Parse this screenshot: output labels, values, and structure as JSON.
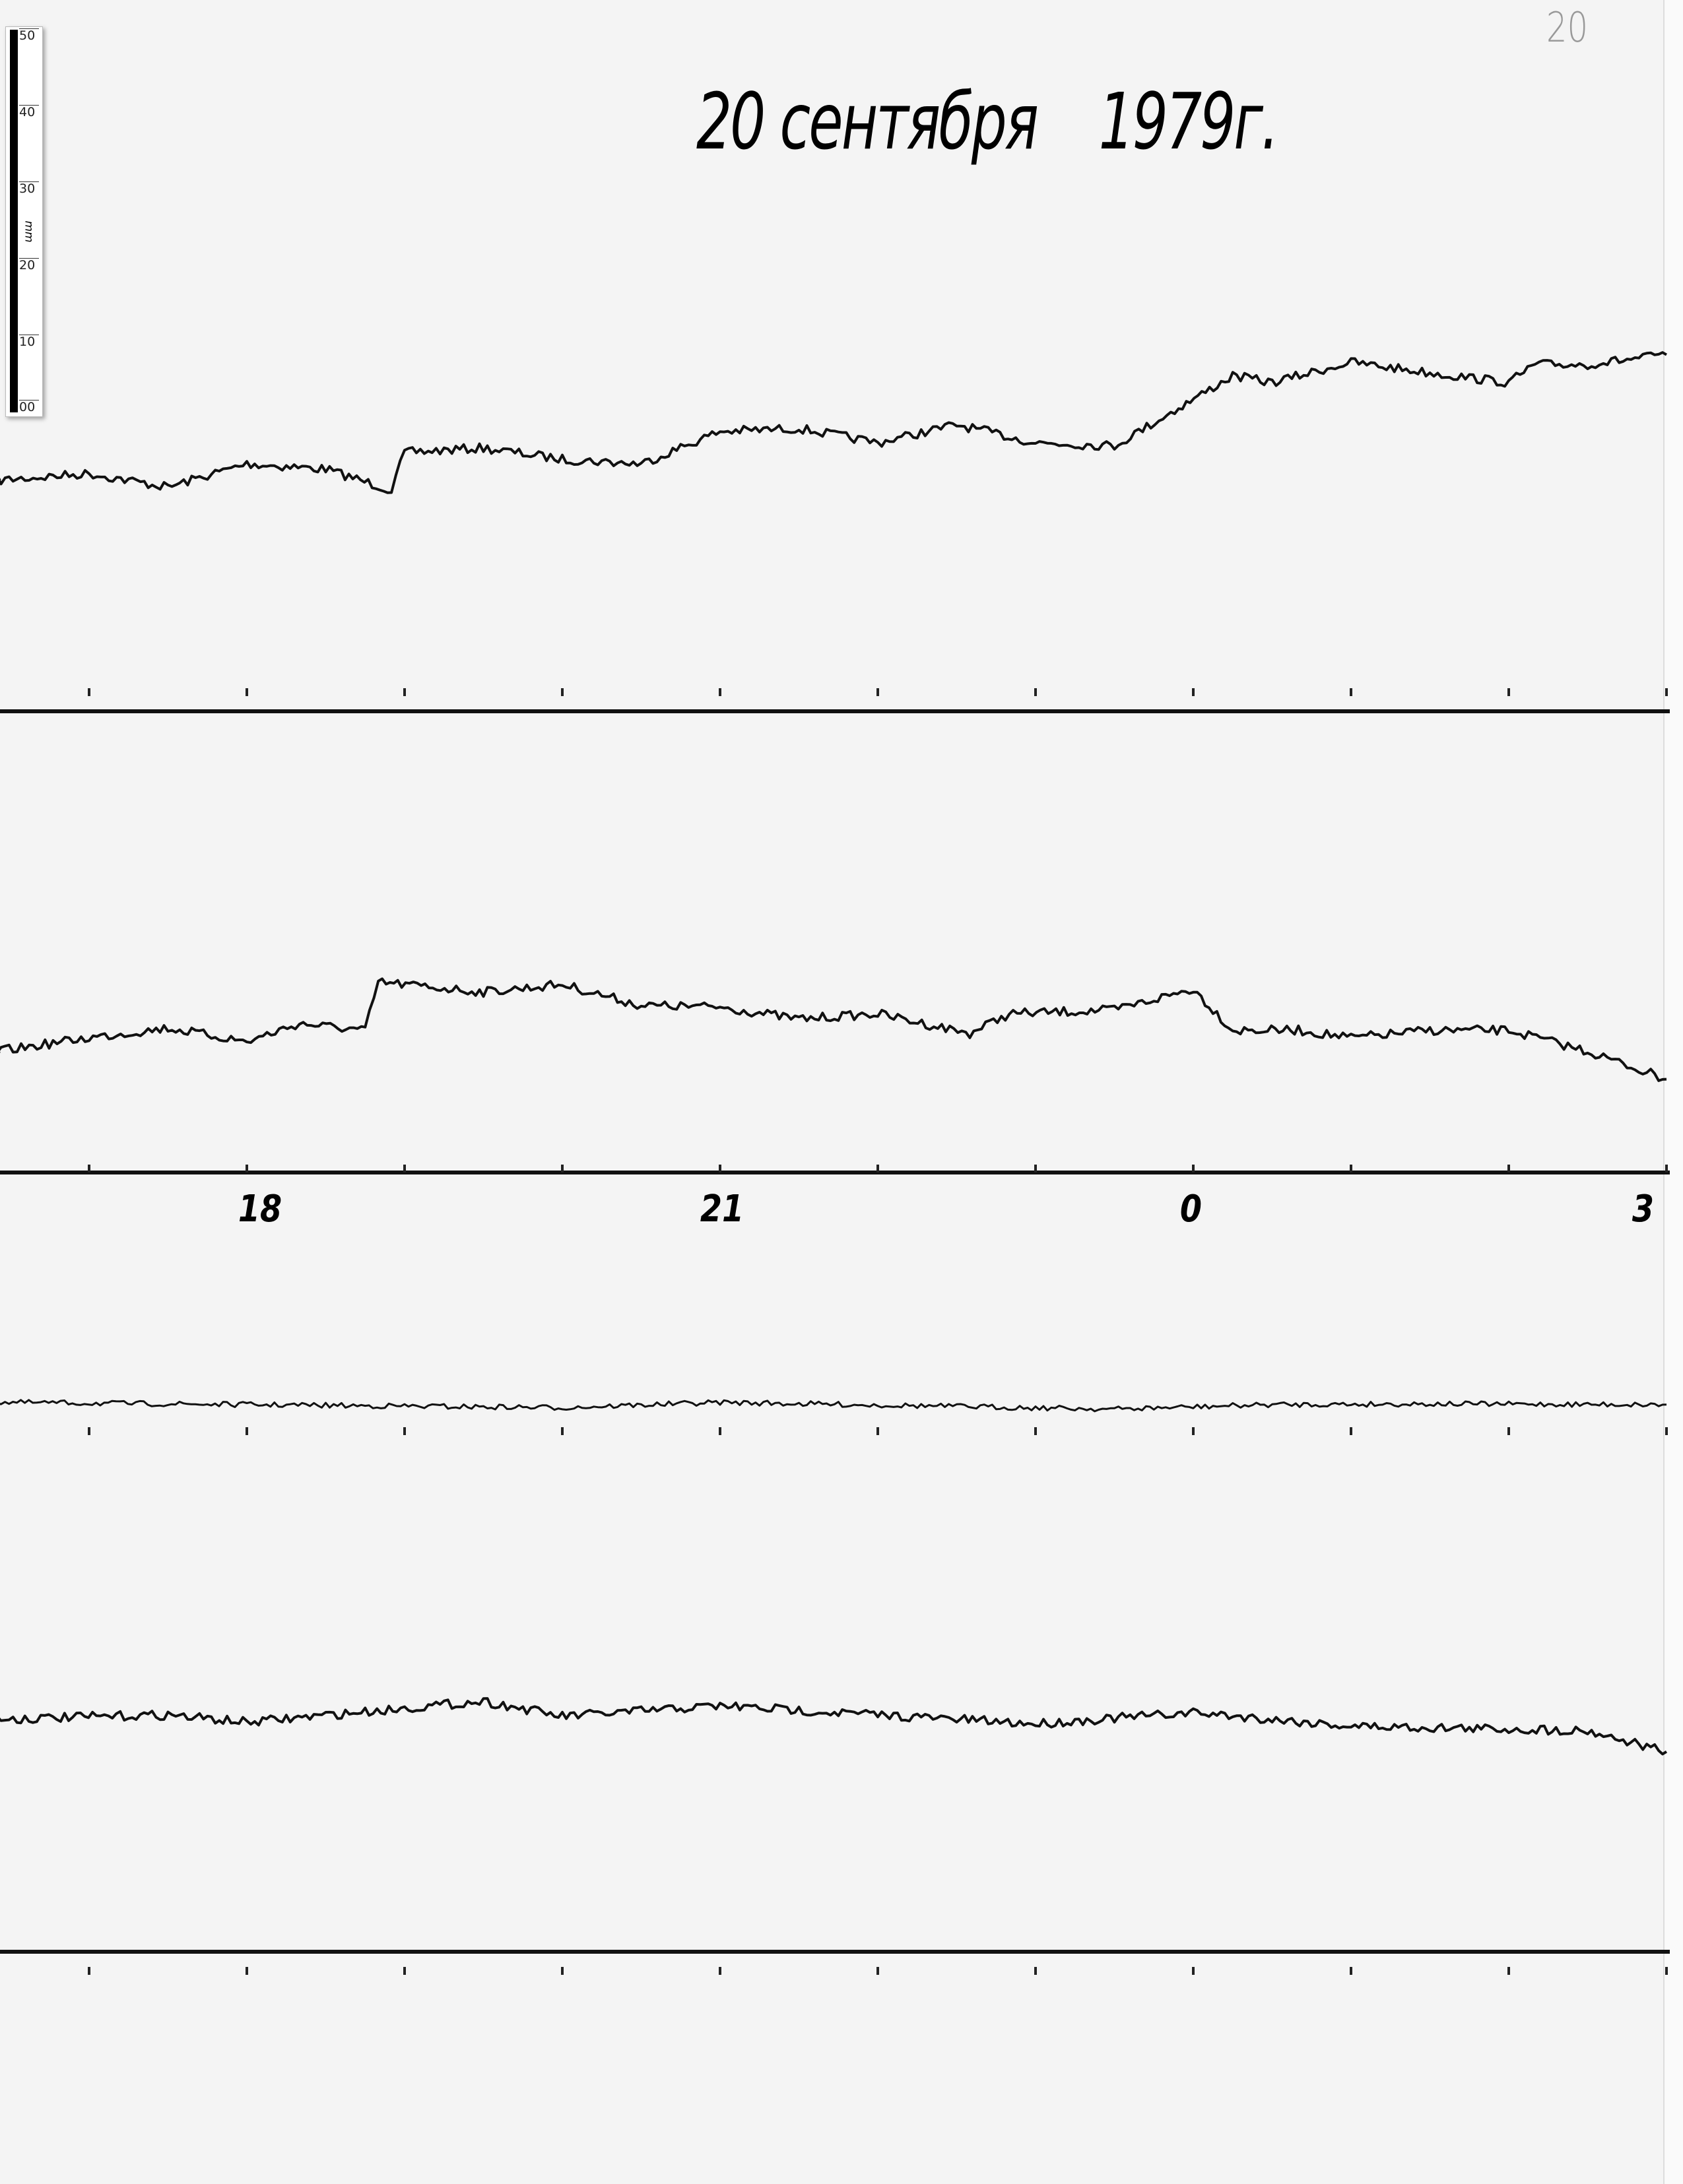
{
  "header": {
    "title_date": "20 сентября",
    "title_year": "1979г.",
    "page_number": "20"
  },
  "ruler": {
    "unit": "mm",
    "labels": [
      "50",
      "40",
      "30",
      "20",
      "10",
      "00"
    ]
  },
  "chart_data": {
    "type": "line",
    "title": "20 сентября 1979г.",
    "xlabel": "",
    "ylabel": "",
    "x_tick_labels": [
      "18",
      "21",
      "0",
      "3"
    ],
    "x_tick_hours": [
      "18:00",
      "21:00",
      "00:00",
      "03:00"
    ],
    "hour_marks": [
      "17:00",
      "18:00",
      "19:00",
      "20:00",
      "21:00",
      "22:00",
      "23:00",
      "00:00",
      "01:00",
      "02:00",
      "03:00"
    ],
    "xlim": [
      "16:25",
      "03:00"
    ],
    "y_units": "mm above panel baseline",
    "grid": false,
    "legend": "none",
    "trace_color": "#111111",
    "series": [
      {
        "x": [
          "16:25",
          "17:00",
          "17:30",
          "18:00",
          "18:30",
          "18:55",
          "19:00",
          "19:30",
          "20:00",
          "20:30",
          "21:00",
          "21:30",
          "22:00",
          "22:30",
          "23:00",
          "23:30",
          "23:50",
          "00:15",
          "00:30",
          "01:00",
          "01:30",
          "02:00",
          "02:10",
          "02:30",
          "03:00"
        ],
        "y": [
          30.7,
          31.6,
          29.8,
          32.9,
          32.2,
          29.4,
          34.4,
          35.0,
          33.5,
          32.9,
          37.2,
          37.6,
          35.7,
          38.1,
          35.7,
          35.3,
          39.4,
          44.6,
          43.7,
          46.4,
          45.0,
          43.7,
          46.1,
          46.1,
          47.4
        ]
      },
      {
        "x": [
          "16:25",
          "17:00",
          "17:30",
          "18:00",
          "18:20",
          "18:45",
          "18:50",
          "19:30",
          "20:00",
          "20:30",
          "21:00",
          "21:30",
          "22:00",
          "22:35",
          "22:50",
          "23:30",
          "00:00",
          "00:15",
          "00:40",
          "01:00",
          "01:30",
          "02:00",
          "02:30",
          "03:00"
        ],
        "y": [
          16.1,
          17.9,
          19.2,
          17.4,
          19.8,
          18.9,
          25.3,
          24.0,
          25.0,
          22.2,
          22.0,
          20.4,
          21.1,
          18.5,
          21.1,
          21.6,
          24.4,
          18.9,
          18.9,
          17.9,
          18.9,
          18.9,
          16.1,
          12.4
        ]
      },
      {
        "x": [
          "16:25",
          "18:00",
          "20:00",
          "21:00",
          "23:30",
          "00:30",
          "01:30",
          "03:00"
        ],
        "y": [
          3.3,
          3.0,
          2.6,
          3.3,
          2.4,
          3.0,
          3.1,
          3.0
        ]
      },
      {
        "x": [
          "16:25",
          "17:30",
          "18:00",
          "19:30",
          "20:00",
          "21:00",
          "22:30",
          "23:00",
          "00:00",
          "01:00",
          "02:30",
          "03:00"
        ],
        "y": [
          30.9,
          31.5,
          30.5,
          33.3,
          31.3,
          32.7,
          30.9,
          30.3,
          31.8,
          30.0,
          29.4,
          26.6
        ]
      }
    ]
  }
}
